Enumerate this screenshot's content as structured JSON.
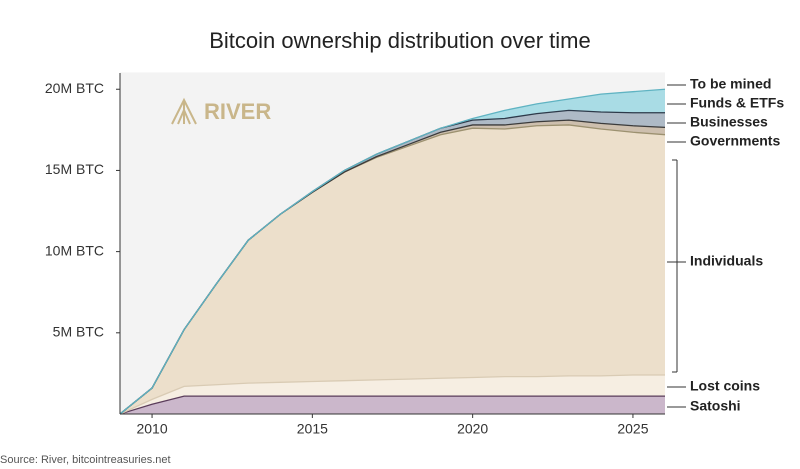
{
  "chart_data": {
    "type": "stacked_area",
    "title": "Bitcoin ownership distribution over time",
    "logo": "RIVER",
    "source": "Source: River, bitcointreasuries.net",
    "x": [
      2009,
      2010,
      2011,
      2012,
      2013,
      2014,
      2015,
      2016,
      2017,
      2018,
      2019,
      2020,
      2021,
      2022,
      2023,
      2024,
      2025,
      2026
    ],
    "xlim": [
      2009,
      2026
    ],
    "xticks": [
      2010,
      2015,
      2020,
      2025
    ],
    "ylim": [
      0,
      21
    ],
    "yticks": [
      {
        "value": 5,
        "label": "5M BTC"
      },
      {
        "value": 10,
        "label": "10M BTC"
      },
      {
        "value": 15,
        "label": "15M BTC"
      },
      {
        "value": 20,
        "label": "20M BTC"
      }
    ],
    "series": [
      {
        "name": "Satoshi",
        "color": "#cbb7cb",
        "line": "#5b3d5b",
        "values": [
          0,
          0.6,
          1.1,
          1.1,
          1.1,
          1.1,
          1.1,
          1.1,
          1.1,
          1.1,
          1.1,
          1.1,
          1.1,
          1.1,
          1.1,
          1.1,
          1.1,
          1.1
        ]
      },
      {
        "name": "Lost coins",
        "color": "#f6eee2",
        "line": "#d9cbb4",
        "values": [
          0,
          0.3,
          0.6,
          0.7,
          0.8,
          0.85,
          0.9,
          0.95,
          1.0,
          1.05,
          1.1,
          1.15,
          1.2,
          1.2,
          1.25,
          1.25,
          1.3,
          1.3
        ]
      },
      {
        "name": "Individuals",
        "color": "#ecdfcb",
        "line": "#9c9170",
        "values": [
          0,
          0.7,
          3.5,
          6.2,
          8.8,
          10.35,
          11.65,
          12.85,
          13.7,
          14.35,
          15.0,
          15.35,
          15.25,
          15.45,
          15.45,
          15.2,
          14.95,
          14.8
        ]
      },
      {
        "name": "Governments",
        "color": "#cdbfae",
        "line": "#3b3b3b",
        "values": [
          0,
          0,
          0,
          0,
          0,
          0,
          0,
          0,
          0.05,
          0.1,
          0.15,
          0.2,
          0.25,
          0.25,
          0.3,
          0.35,
          0.4,
          0.45
        ]
      },
      {
        "name": "Businesses",
        "color": "#aebac6",
        "line": "#2d3a4a",
        "values": [
          0,
          0,
          0,
          0,
          0,
          0,
          0.05,
          0.1,
          0.15,
          0.2,
          0.25,
          0.3,
          0.4,
          0.5,
          0.6,
          0.7,
          0.8,
          0.9
        ]
      },
      {
        "name": "Funds & ETFs",
        "color": "#a9dce5",
        "line": "#5fb3c2",
        "values": [
          0,
          0,
          0,
          0,
          0,
          0,
          0,
          0,
          0,
          0,
          0,
          0.1,
          0.5,
          0.6,
          0.7,
          1.1,
          1.3,
          1.45
        ]
      },
      {
        "name": "To be mined",
        "color": "#f3f3f3",
        "line": "#f3f3f3",
        "values": [
          21,
          19.4,
          15.8,
          13,
          10.3,
          8.7,
          7.3,
          6,
          5,
          4.2,
          3.4,
          2.8,
          2.3,
          1.9,
          1.6,
          1.3,
          1.15,
          1.0
        ]
      }
    ]
  }
}
